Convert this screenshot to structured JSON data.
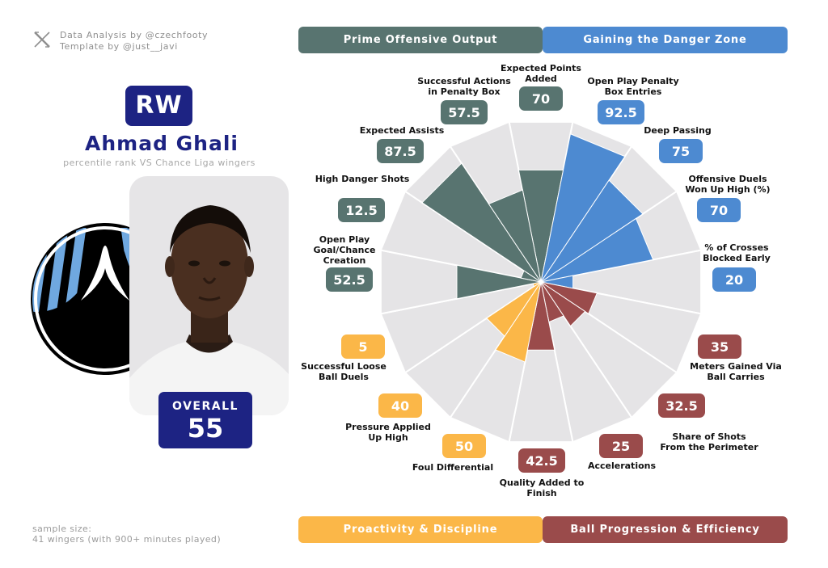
{
  "credits": {
    "line1": "Data Analysis by @czechfooty",
    "line2": "Template by @just__javi"
  },
  "player": {
    "position": "RW",
    "name": "Ahmad Ghali",
    "subtitle": "percentile rank VS Chance Liga wingers",
    "overall_label": "OVERALL",
    "overall_value": "55"
  },
  "sample": {
    "line1": "sample size:",
    "line2": "41 wingers (with 900+ minutes played)"
  },
  "categories": {
    "top_left": "Prime Offensive Output",
    "top_right": "Gaining the Danger Zone",
    "bottom_left": "Proactivity & Discipline",
    "bottom_right": "Ball Progression & Efficiency"
  },
  "colors": {
    "offensive": "#587470",
    "danger": "#4d8ad1",
    "proactivity": "#fbb748",
    "progression": "#9a4b4b",
    "navy": "#1d2383",
    "grid": "#e5e4e6"
  },
  "chart_data": {
    "type": "radar-bar",
    "scale": [
      0,
      100
    ],
    "groups": [
      {
        "name": "Prime Offensive Output",
        "color": "#587470"
      },
      {
        "name": "Gaining the Danger Zone",
        "color": "#4d8ad1"
      },
      {
        "name": "Ball Progression & Efficiency",
        "color": "#9a4b4b"
      },
      {
        "name": "Proactivity & Discipline",
        "color": "#fbb748"
      }
    ],
    "metrics": [
      {
        "label": "Expected Points Added",
        "value": 70,
        "group": 0
      },
      {
        "label": "Open Play Penalty Box Entries",
        "value": 92.5,
        "group": 1
      },
      {
        "label": "Deep Passing",
        "value": 75,
        "group": 1
      },
      {
        "label": "Offensive Duels Won Up High (%)",
        "value": 70,
        "group": 1
      },
      {
        "label": "% of Crosses Blocked Early",
        "value": 20,
        "group": 1
      },
      {
        "label": "Meters Gained Via Ball Carries",
        "value": 35,
        "group": 2
      },
      {
        "label": "Share of Shots From the Perimeter",
        "value": 32.5,
        "group": 2
      },
      {
        "label": "Accelerations",
        "value": 25,
        "group": 2
      },
      {
        "label": "Quality Added to Finish",
        "value": 42.5,
        "group": 2
      },
      {
        "label": "Foul Differential",
        "value": 50,
        "group": 3
      },
      {
        "label": "Pressure Applied Up High",
        "value": 40,
        "group": 3
      },
      {
        "label": "Successful Loose Ball Duels",
        "value": 5,
        "group": 3
      },
      {
        "label": "Open Play Goal/Chance Creation",
        "value": 52.5,
        "group": 0
      },
      {
        "label": "High Danger Shots",
        "value": 12.5,
        "group": 0
      },
      {
        "label": "Expected Assists",
        "value": 87.5,
        "group": 0
      },
      {
        "label": "Successful Actions in Penalty Box",
        "value": 57.5,
        "group": 0
      }
    ]
  }
}
